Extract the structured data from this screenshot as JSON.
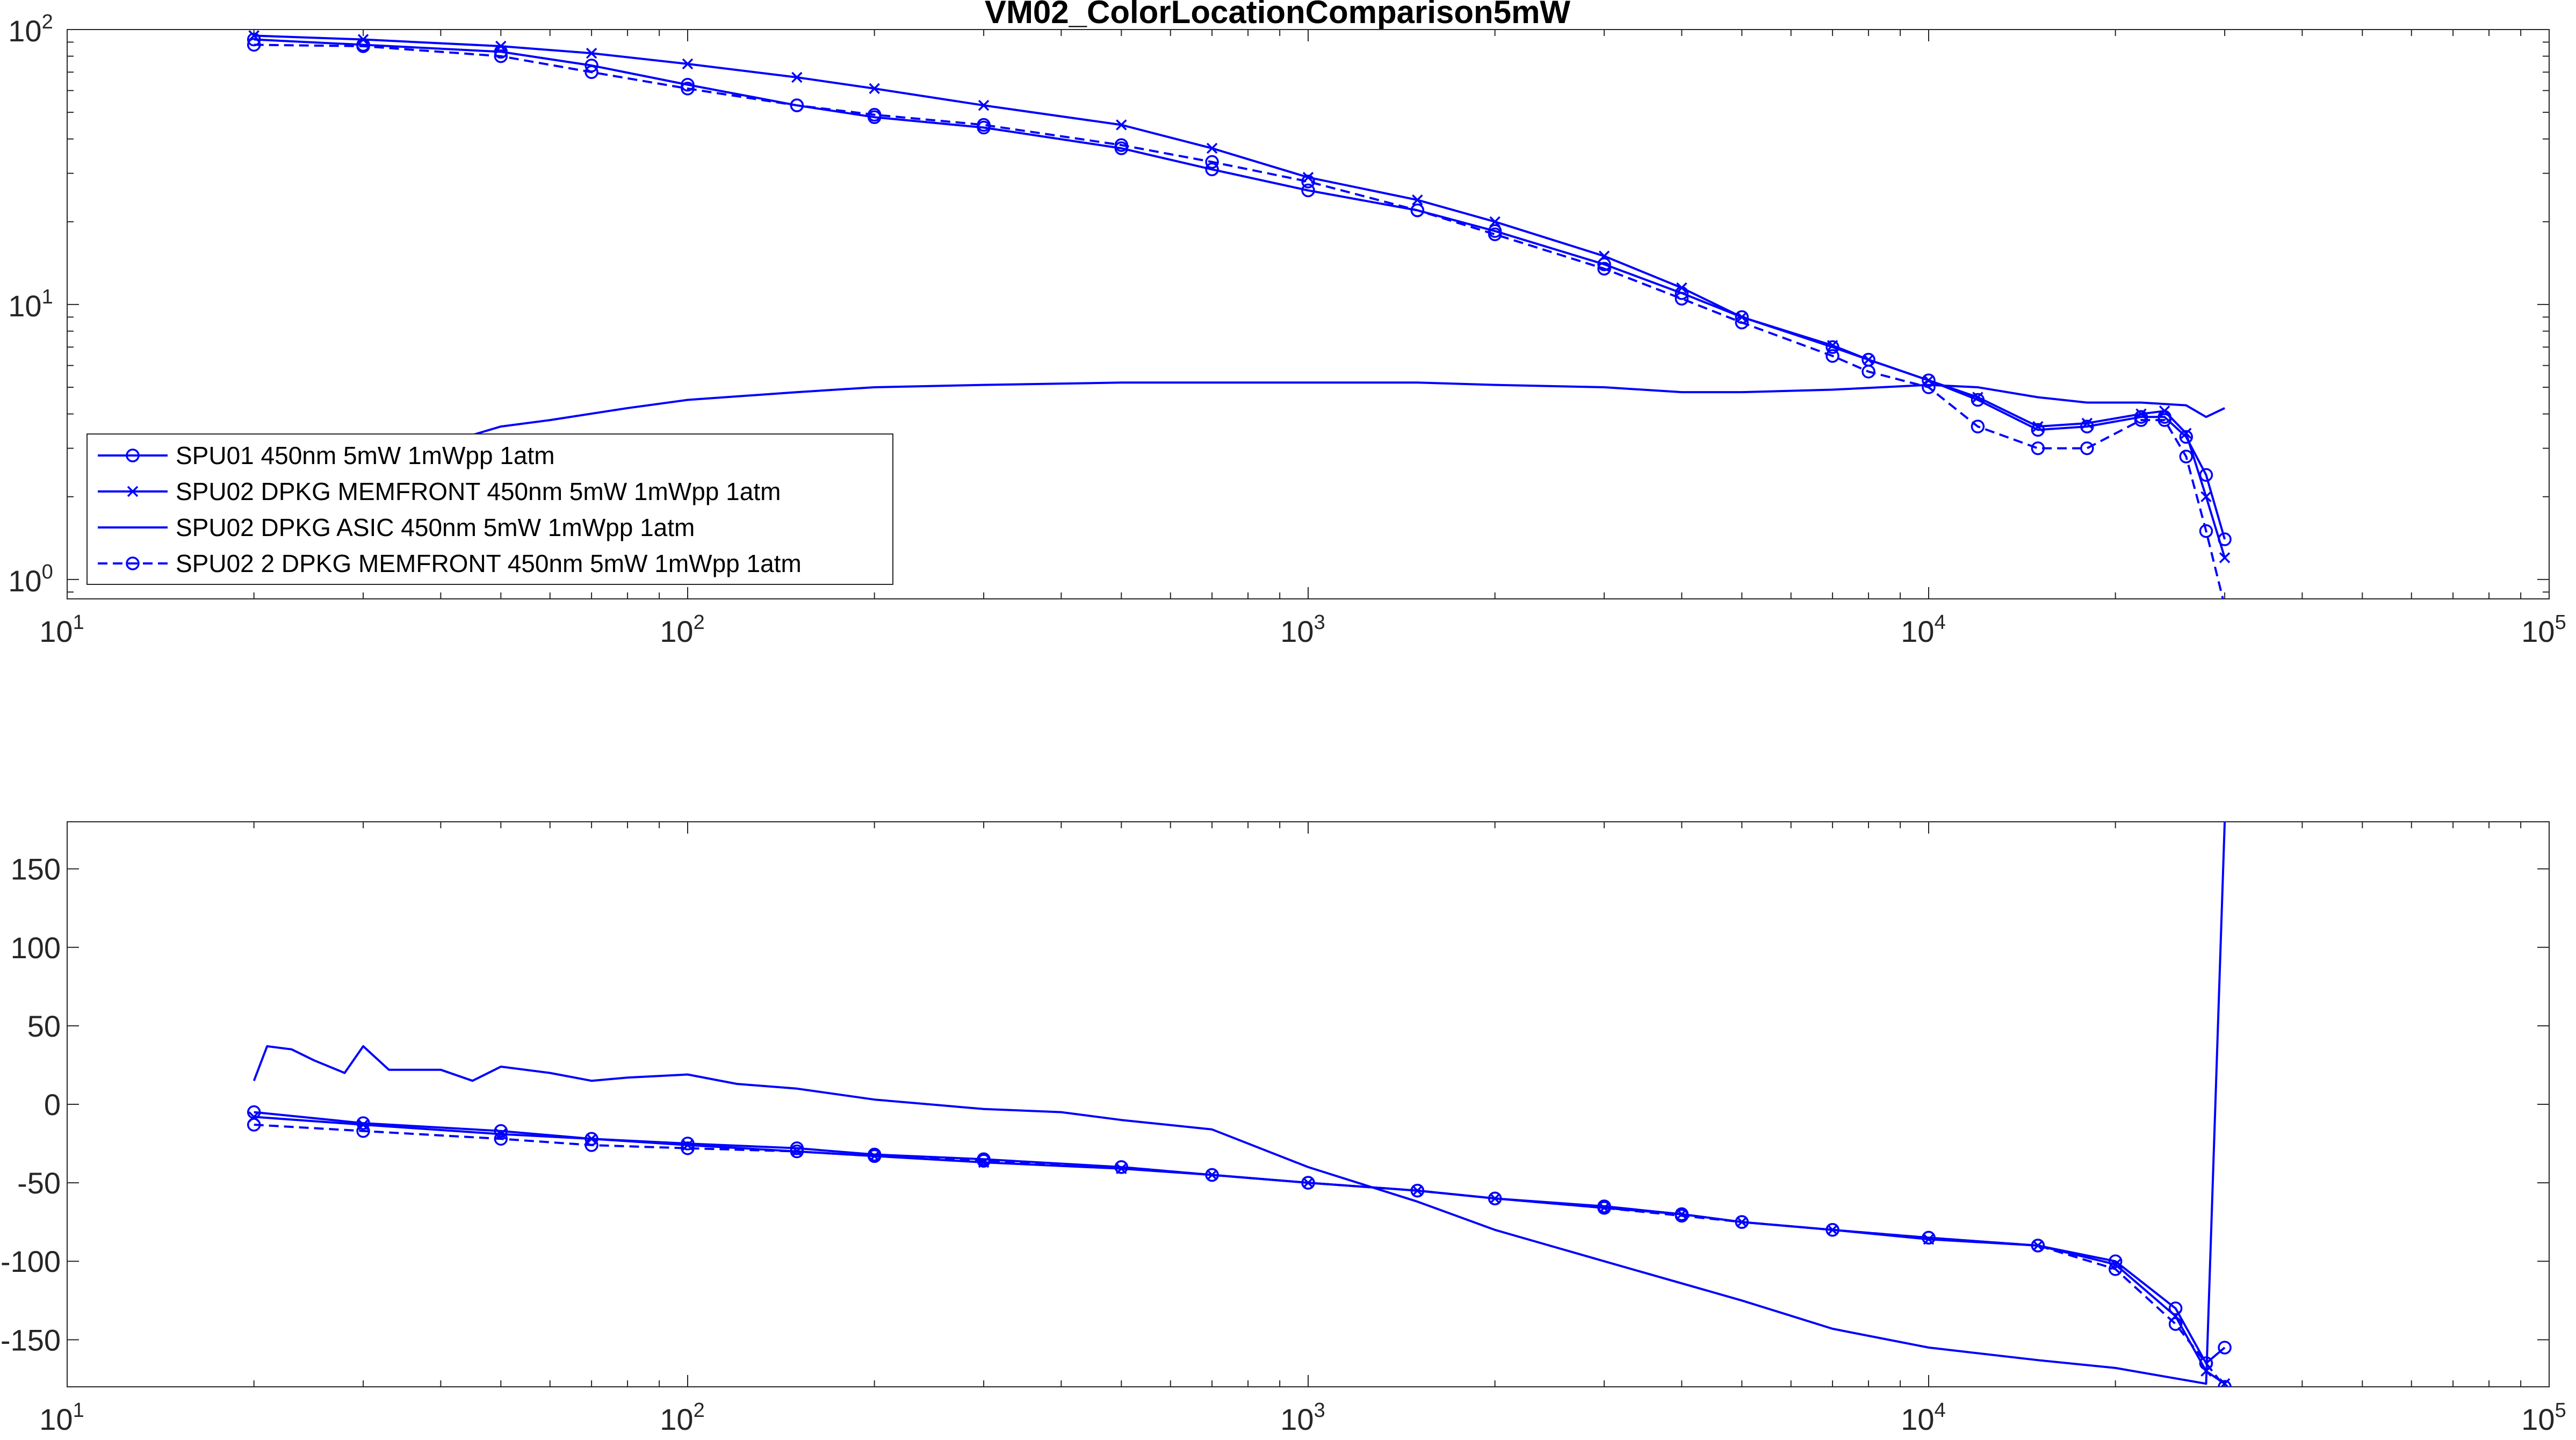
{
  "colors": {
    "series": "#0000ff",
    "axis": "#262626",
    "background": "#ffffff"
  },
  "chart_data": [
    {
      "type": "line",
      "title": "VM02_ColorLocationComparison5mW",
      "xlabel": "",
      "ylabel": "",
      "xscale": "log",
      "yscale": "log",
      "xlim": [
        10,
        100000
      ],
      "ylim": [
        0.85,
        100
      ],
      "x_ticks": [
        {
          "base": "10",
          "exp": "1"
        },
        {
          "base": "10",
          "exp": "2"
        },
        {
          "base": "10",
          "exp": "3"
        },
        {
          "base": "10",
          "exp": "4"
        },
        {
          "base": "10",
          "exp": "5"
        }
      ],
      "y_ticks": [
        {
          "value": 1,
          "base": "10",
          "exp": "0"
        },
        {
          "value": 10,
          "base": "10",
          "exp": "1"
        },
        {
          "value": 100,
          "base": "10",
          "exp": "2"
        }
      ],
      "legend_position": "bottom-left",
      "series": [
        {
          "name": "SPU01 450nm 5mW 1mWpp 1atm",
          "style": "solid",
          "marker": "circle",
          "points": [
            [
              20,
              92
            ],
            [
              30,
              88
            ],
            [
              50,
              83
            ],
            [
              70,
              74
            ],
            [
              100,
              63
            ],
            [
              150,
              53
            ],
            [
              200,
              48
            ],
            [
              300,
              44
            ],
            [
              500,
              37
            ],
            [
              700,
              31
            ],
            [
              1000,
              26
            ],
            [
              1500,
              22
            ],
            [
              2000,
              18.5
            ],
            [
              3000,
              14
            ],
            [
              4000,
              11
            ],
            [
              5000,
              9
            ],
            [
              7000,
              7
            ],
            [
              8000,
              6.3
            ],
            [
              10000,
              5.3
            ],
            [
              12000,
              4.5
            ],
            [
              15000,
              3.5
            ],
            [
              18000,
              3.6
            ],
            [
              22000,
              3.9
            ],
            [
              24000,
              3.9
            ],
            [
              26000,
              3.3
            ],
            [
              28000,
              2.4
            ],
            [
              30000,
              1.4
            ]
          ]
        },
        {
          "name": "SPU02 DPKG MEMFRONT 450nm 5mW 1mWpp 1atm",
          "style": "solid",
          "marker": "x",
          "points": [
            [
              20,
              95
            ],
            [
              30,
              92
            ],
            [
              50,
              87
            ],
            [
              70,
              82
            ],
            [
              100,
              75
            ],
            [
              150,
              67
            ],
            [
              200,
              61
            ],
            [
              300,
              53
            ],
            [
              500,
              45
            ],
            [
              700,
              37
            ],
            [
              1000,
              29
            ],
            [
              1500,
              24
            ],
            [
              2000,
              20
            ],
            [
              3000,
              15
            ],
            [
              4000,
              11.5
            ],
            [
              5000,
              9
            ],
            [
              7000,
              7.1
            ],
            [
              8000,
              6.3
            ],
            [
              10000,
              5.3
            ],
            [
              12000,
              4.6
            ],
            [
              15000,
              3.6
            ],
            [
              18000,
              3.7
            ],
            [
              22000,
              4
            ],
            [
              24000,
              4.1
            ],
            [
              26000,
              3.4
            ],
            [
              28000,
              2
            ],
            [
              30000,
              1.2
            ]
          ]
        },
        {
          "name": "SPU02 DPKG ASIC 450nm 5mW 1mWpp 1atm",
          "style": "solid",
          "marker": "none",
          "points": [
            [
              30,
              2.3
            ],
            [
              40,
              3.1
            ],
            [
              50,
              3.6
            ],
            [
              60,
              3.8
            ],
            [
              80,
              4.2
            ],
            [
              100,
              4.5
            ],
            [
              150,
              4.8
            ],
            [
              200,
              5
            ],
            [
              300,
              5.1
            ],
            [
              500,
              5.2
            ],
            [
              700,
              5.2
            ],
            [
              1000,
              5.2
            ],
            [
              1500,
              5.2
            ],
            [
              2000,
              5.1
            ],
            [
              3000,
              5
            ],
            [
              4000,
              4.8
            ],
            [
              5000,
              4.8
            ],
            [
              7000,
              4.9
            ],
            [
              10000,
              5.1
            ],
            [
              12000,
              5
            ],
            [
              15000,
              4.6
            ],
            [
              18000,
              4.4
            ],
            [
              22000,
              4.4
            ],
            [
              26000,
              4.3
            ],
            [
              28000,
              3.9
            ],
            [
              30000,
              4.2
            ]
          ]
        },
        {
          "name": "SPU02 2 DPKG MEMFRONT 450nm 5mW 1mWpp 1atm",
          "style": "dashed",
          "marker": "circle",
          "points": [
            [
              20,
              88
            ],
            [
              30,
              87
            ],
            [
              50,
              80
            ],
            [
              70,
              70
            ],
            [
              100,
              61
            ],
            [
              150,
              53
            ],
            [
              200,
              49
            ],
            [
              300,
              45
            ],
            [
              500,
              38
            ],
            [
              700,
              33
            ],
            [
              1000,
              28
            ],
            [
              1500,
              22
            ],
            [
              2000,
              18
            ],
            [
              3000,
              13.5
            ],
            [
              4000,
              10.5
            ],
            [
              5000,
              8.6
            ],
            [
              7000,
              6.5
            ],
            [
              8000,
              5.7
            ],
            [
              10000,
              5
            ],
            [
              12000,
              3.6
            ],
            [
              15000,
              3
            ],
            [
              18000,
              3
            ],
            [
              22000,
              3.8
            ],
            [
              24000,
              3.8
            ],
            [
              26000,
              2.8
            ],
            [
              28000,
              1.5
            ],
            [
              30000,
              0.8
            ]
          ]
        }
      ]
    },
    {
      "type": "line",
      "title": "",
      "xlabel": "",
      "ylabel": "",
      "xscale": "log",
      "yscale": "linear",
      "xlim": [
        10,
        100000
      ],
      "ylim": [
        -180,
        180
      ],
      "x_ticks": [
        {
          "base": "10",
          "exp": "1"
        },
        {
          "base": "10",
          "exp": "2"
        },
        {
          "base": "10",
          "exp": "3"
        },
        {
          "base": "10",
          "exp": "4"
        },
        {
          "base": "10",
          "exp": "5"
        }
      ],
      "y_ticks": [
        {
          "value": 150,
          "label": "150"
        },
        {
          "value": 100,
          "label": "100"
        },
        {
          "value": 50,
          "label": "50"
        },
        {
          "value": 0,
          "label": "0"
        },
        {
          "value": -50,
          "label": "-50"
        },
        {
          "value": -100,
          "label": "-100"
        },
        {
          "value": -150,
          "label": "-150"
        }
      ],
      "series": [
        {
          "name": "SPU01 450nm 5mW 1mWpp 1atm",
          "style": "solid",
          "marker": "circle",
          "points": [
            [
              20,
              -5
            ],
            [
              30,
              -12
            ],
            [
              50,
              -17
            ],
            [
              70,
              -22
            ],
            [
              100,
              -25
            ],
            [
              150,
              -28
            ],
            [
              200,
              -32
            ],
            [
              300,
              -35
            ],
            [
              500,
              -40
            ],
            [
              700,
              -45
            ],
            [
              1000,
              -50
            ],
            [
              1500,
              -55
            ],
            [
              2000,
              -60
            ],
            [
              3000,
              -65
            ],
            [
              4000,
              -70
            ],
            [
              5000,
              -75
            ],
            [
              7000,
              -80
            ],
            [
              10000,
              -85
            ],
            [
              15000,
              -90
            ],
            [
              20000,
              -100
            ],
            [
              25000,
              -130
            ],
            [
              28000,
              -165
            ],
            [
              30000,
              -155
            ]
          ]
        },
        {
          "name": "SPU02 DPKG MEMFRONT 450nm 5mW 1mWpp 1atm",
          "style": "solid",
          "marker": "x",
          "points": [
            [
              20,
              -8
            ],
            [
              30,
              -13
            ],
            [
              50,
              -19
            ],
            [
              70,
              -22
            ],
            [
              100,
              -26
            ],
            [
              150,
              -30
            ],
            [
              200,
              -33
            ],
            [
              300,
              -37
            ],
            [
              500,
              -41
            ],
            [
              700,
              -45
            ],
            [
              1000,
              -50
            ],
            [
              1500,
              -55
            ],
            [
              2000,
              -60
            ],
            [
              3000,
              -66
            ],
            [
              4000,
              -70
            ],
            [
              5000,
              -75
            ],
            [
              7000,
              -80
            ],
            [
              10000,
              -86
            ],
            [
              15000,
              -90
            ],
            [
              20000,
              -102
            ],
            [
              25000,
              -135
            ],
            [
              28000,
              -170
            ],
            [
              30000,
              -178
            ]
          ]
        },
        {
          "name": "SPU02 DPKG ASIC 450nm 5mW 1mWpp 1atm",
          "style": "solid",
          "marker": "none",
          "points": [
            [
              20,
              15
            ],
            [
              21,
              37
            ],
            [
              23,
              35
            ],
            [
              25,
              28
            ],
            [
              28,
              20
            ],
            [
              30,
              37
            ],
            [
              33,
              22
            ],
            [
              40,
              22
            ],
            [
              45,
              15
            ],
            [
              50,
              24
            ],
            [
              60,
              20
            ],
            [
              70,
              15
            ],
            [
              80,
              17
            ],
            [
              100,
              19
            ],
            [
              120,
              13
            ],
            [
              150,
              10
            ],
            [
              200,
              3
            ],
            [
              300,
              -3
            ],
            [
              400,
              -5
            ],
            [
              500,
              -10
            ],
            [
              700,
              -16
            ],
            [
              1000,
              -40
            ],
            [
              1500,
              -62
            ],
            [
              2000,
              -80
            ],
            [
              3000,
              -100
            ],
            [
              5000,
              -125
            ],
            [
              7000,
              -143
            ],
            [
              10000,
              -155
            ],
            [
              15000,
              -163
            ],
            [
              20000,
              -168
            ],
            [
              28000,
              -178
            ],
            [
              30000,
              180
            ]
          ]
        },
        {
          "name": "SPU02 2 DPKG MEMFRONT 450nm 5mW 1mWpp 1atm",
          "style": "dashed",
          "marker": "circle",
          "points": [
            [
              20,
              -13
            ],
            [
              30,
              -17
            ],
            [
              50,
              -22
            ],
            [
              70,
              -26
            ],
            [
              100,
              -28
            ],
            [
              150,
              -30
            ],
            [
              200,
              -33
            ],
            [
              300,
              -36
            ],
            [
              500,
              -40
            ],
            [
              700,
              -45
            ],
            [
              1000,
              -50
            ],
            [
              1500,
              -55
            ],
            [
              2000,
              -60
            ],
            [
              3000,
              -66
            ],
            [
              4000,
              -71
            ],
            [
              5000,
              -75
            ],
            [
              7000,
              -80
            ],
            [
              10000,
              -85
            ],
            [
              15000,
              -90
            ],
            [
              20000,
              -105
            ],
            [
              25000,
              -140
            ],
            [
              28000,
              -165
            ],
            [
              30000,
              -180
            ]
          ]
        }
      ]
    }
  ]
}
